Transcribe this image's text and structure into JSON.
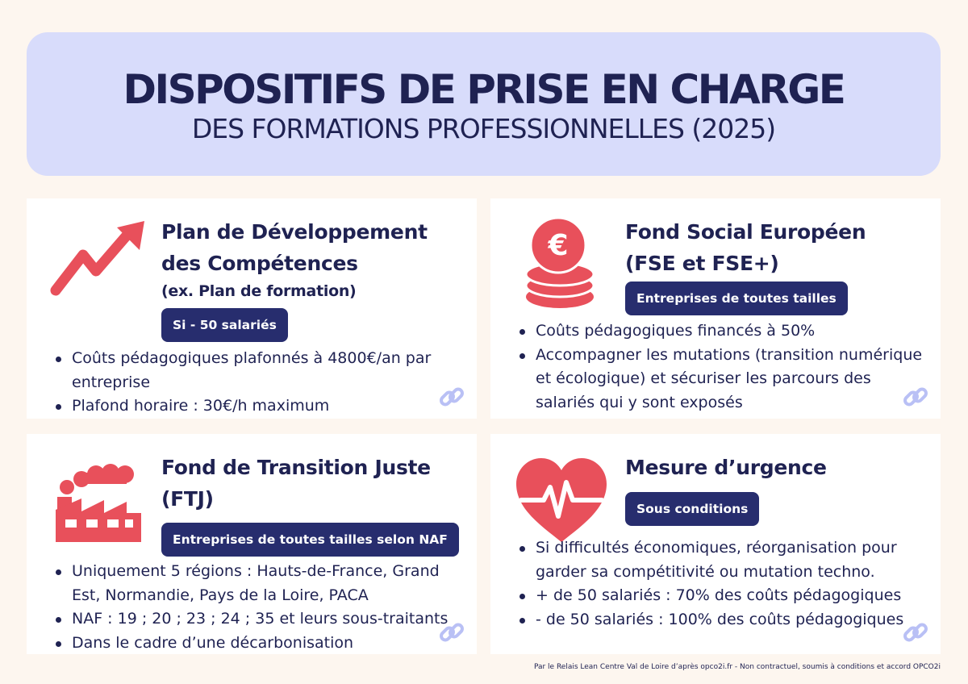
{
  "header": {
    "title": "DISPOSITIFS DE PRISE EN CHARGE",
    "subtitle": "DES FORMATIONS PROFESSIONNELLES (2025)"
  },
  "cards": [
    {
      "icon": "trend-arrow-icon",
      "title_line1": "Plan de Développement",
      "title_line2": "des Compétences",
      "subtitle": "(ex. Plan de formation)",
      "badge": "Si - 50 salariés",
      "bullets": [
        "Coûts pédagogiques plafonnés à 4800€/an par entreprise",
        "Plafond horaire : 30€/h maximum"
      ]
    },
    {
      "icon": "euro-coins-icon",
      "title_line1": "Fond Social Européen",
      "title_line2": "(FSE et FSE+)",
      "badge": "Entreprises de toutes tailles",
      "bullets": [
        "Coûts pédagogiques financés à 50%",
        "Accompagner les mutations (transition numérique et écologique) et sécuriser les parcours des salariés qui y sont exposés"
      ]
    },
    {
      "icon": "factory-icon",
      "title_line1": "Fond de Transition Juste",
      "title_line2": "(FTJ)",
      "badge": "Entreprises de toutes tailles selon NAF",
      "bullets": [
        "Uniquement 5 régions : Hauts-de-France, Grand Est, Normandie, Pays de la Loire, PACA",
        "NAF : 19 ; 20 ; 23 ; 24 ; 35 et leurs sous-traitants",
        "Dans le cadre d’une décarbonisation"
      ]
    },
    {
      "icon": "heartbeat-icon",
      "title_line1": "Mesure d’urgence",
      "badge": "Sous conditions",
      "bullets": [
        "Si difficultés économiques, réorganisation pour garder sa compétitivité ou mutation techno.",
        "+ de 50 salariés : 70% des coûts pédagogiques",
        "- de 50 salariés : 100% des coûts pédagogiques"
      ]
    }
  ],
  "footer": "Par le Relais Lean Centre Val de Loire d’après opco2i.fr - Non contractuel, soumis à conditions et accord OPCO2i",
  "colors": {
    "background": "#fdf6ef",
    "header_bg": "#d8dcfb",
    "navy": "#1f2252",
    "badge": "#272d6e",
    "accent_red": "#e8505b",
    "link_icon": "#b9c0f5"
  }
}
